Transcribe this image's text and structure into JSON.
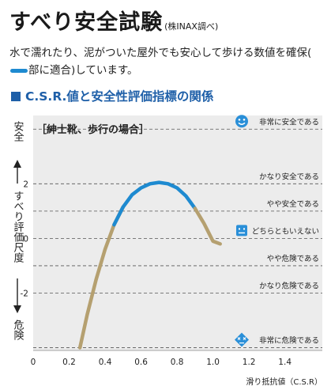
{
  "header": {
    "title": "すべり安全試験",
    "title_note": "(株INAX調べ)",
    "description_before": "水で濡れたり、泥がついた屋外でも安心して歩ける数値を確保(",
    "description_after": "部に適合)しています。",
    "section_title": "C.S.R.値と安全性評価指標の関係"
  },
  "colors": {
    "accent": "#1e8ad0",
    "curve_other": "#b5a070",
    "section": "#1e5fa8",
    "plot_bg": "#ececec"
  },
  "chart_data": {
    "type": "line",
    "title": "［紳士靴、歩行の場合］",
    "xlabel": "滑り抵抗値（C.S.R）",
    "ylabel_top": "安全",
    "ylabel_middle": "すべり評価尺度",
    "ylabel_bottom": "危険",
    "xlim": [
      0,
      1.6
    ],
    "ylim": [
      -4.1,
      4.5
    ],
    "x_ticks": [
      0,
      0.2,
      0.4,
      0.6,
      0.8,
      1.0,
      1.2,
      1.4
    ],
    "x_tick_labels": [
      "0",
      "0.2",
      "0.4",
      "0.6",
      "0.8",
      "1.0",
      "1.2",
      "1.4"
    ],
    "y_ticks": [
      2,
      0,
      -2
    ],
    "y_tick_labels": [
      "2",
      "0",
      "-2"
    ],
    "grid": "dashed horizontal lines at each rating level",
    "levels": [
      {
        "y": 4.0,
        "label": "非常に安全である",
        "icon": "smile-icon"
      },
      {
        "y": 2.0,
        "label": "かなり安全である"
      },
      {
        "y": 1.0,
        "label": "やや安全である"
      },
      {
        "y": 0.0,
        "label": "どちらともいえない",
        "icon": "neutral-face-icon"
      },
      {
        "y": -1.0,
        "label": "やや危険である"
      },
      {
        "y": -2.0,
        "label": "かなり危険である"
      },
      {
        "y": -4.0,
        "label": "非常に危険である",
        "icon": "danger-face-icon"
      }
    ],
    "series": [
      {
        "x": [
          0.26,
          0.3,
          0.35,
          0.4,
          0.45,
          0.5,
          0.55,
          0.6,
          0.65,
          0.7,
          0.75,
          0.8,
          0.85,
          0.9,
          0.95,
          1.0,
          1.04
        ],
        "y": [
          -4.0,
          -2.8,
          -1.5,
          -0.4,
          0.5,
          1.15,
          1.6,
          1.85,
          2.0,
          2.05,
          2.0,
          1.85,
          1.55,
          1.1,
          0.55,
          -0.1,
          -0.2
        ]
      }
    ],
    "highlight_range": [
      0.47,
      0.9
    ]
  }
}
